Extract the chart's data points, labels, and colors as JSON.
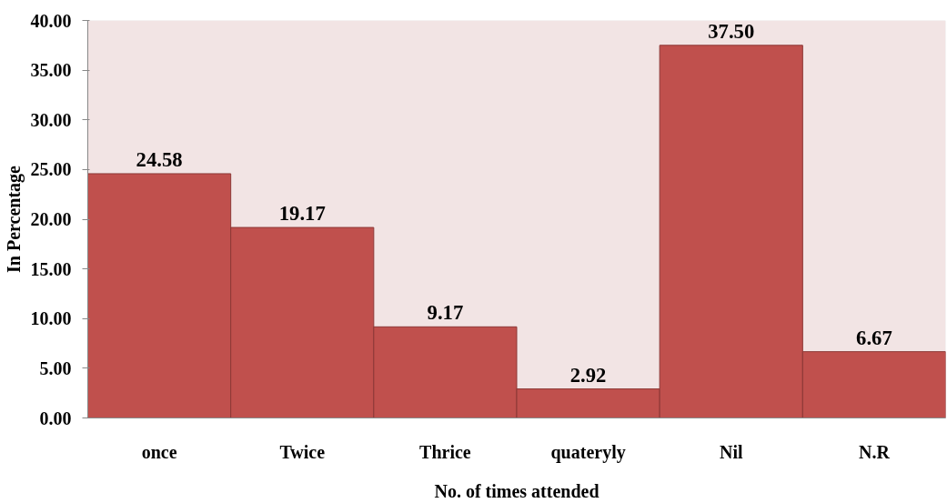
{
  "chart_data": {
    "type": "bar",
    "xlabel": "No. of times attended",
    "ylabel": "In Percentage",
    "categories": [
      "once",
      "Twice",
      "Thrice",
      "quateryly",
      "Nil",
      "N.R"
    ],
    "values": [
      24.58,
      19.17,
      9.17,
      2.92,
      37.5,
      6.67
    ],
    "value_labels": [
      "24.58",
      "19.17",
      "9.17",
      "2.92",
      "37.50",
      "6.67"
    ],
    "color": "#c0504d",
    "ylim": [
      0,
      40
    ],
    "yticks": [
      {
        "value": 0,
        "label": "0.00"
      },
      {
        "value": 5,
        "label": "5.00"
      },
      {
        "value": 10,
        "label": "10.00"
      },
      {
        "value": 15,
        "label": "15.00"
      },
      {
        "value": 20,
        "label": "20.00"
      },
      {
        "value": 25,
        "label": "25.00"
      },
      {
        "value": 30,
        "label": "30.00"
      },
      {
        "value": 35,
        "label": "35.00"
      },
      {
        "value": 40,
        "label": "40.00"
      }
    ]
  }
}
